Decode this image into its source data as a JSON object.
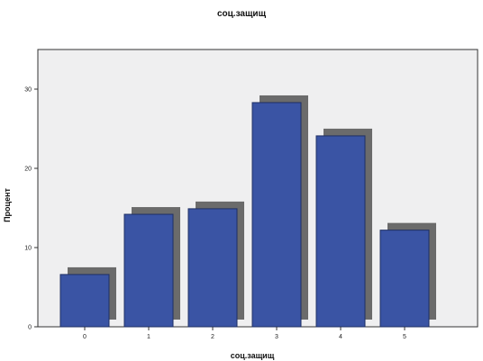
{
  "chart_data": {
    "type": "bar",
    "title": "соц.защищ",
    "xlabel": "соц.защищ",
    "ylabel": "Процент",
    "categories": [
      "0",
      "1",
      "2",
      "3",
      "4",
      "5"
    ],
    "values": [
      6.6,
      14.2,
      14.9,
      28.3,
      24.1,
      12.2
    ],
    "ylim": [
      0,
      35
    ],
    "yticks": [
      "0",
      "10",
      "20",
      "30"
    ],
    "grid": false,
    "legend": "none",
    "colors": {
      "bar": "#3a54a4",
      "bar_border": "#1f2f63",
      "shadow": "#6b6b6b",
      "plot_background": "#efeff0",
      "plot_border": "#333333"
    }
  }
}
